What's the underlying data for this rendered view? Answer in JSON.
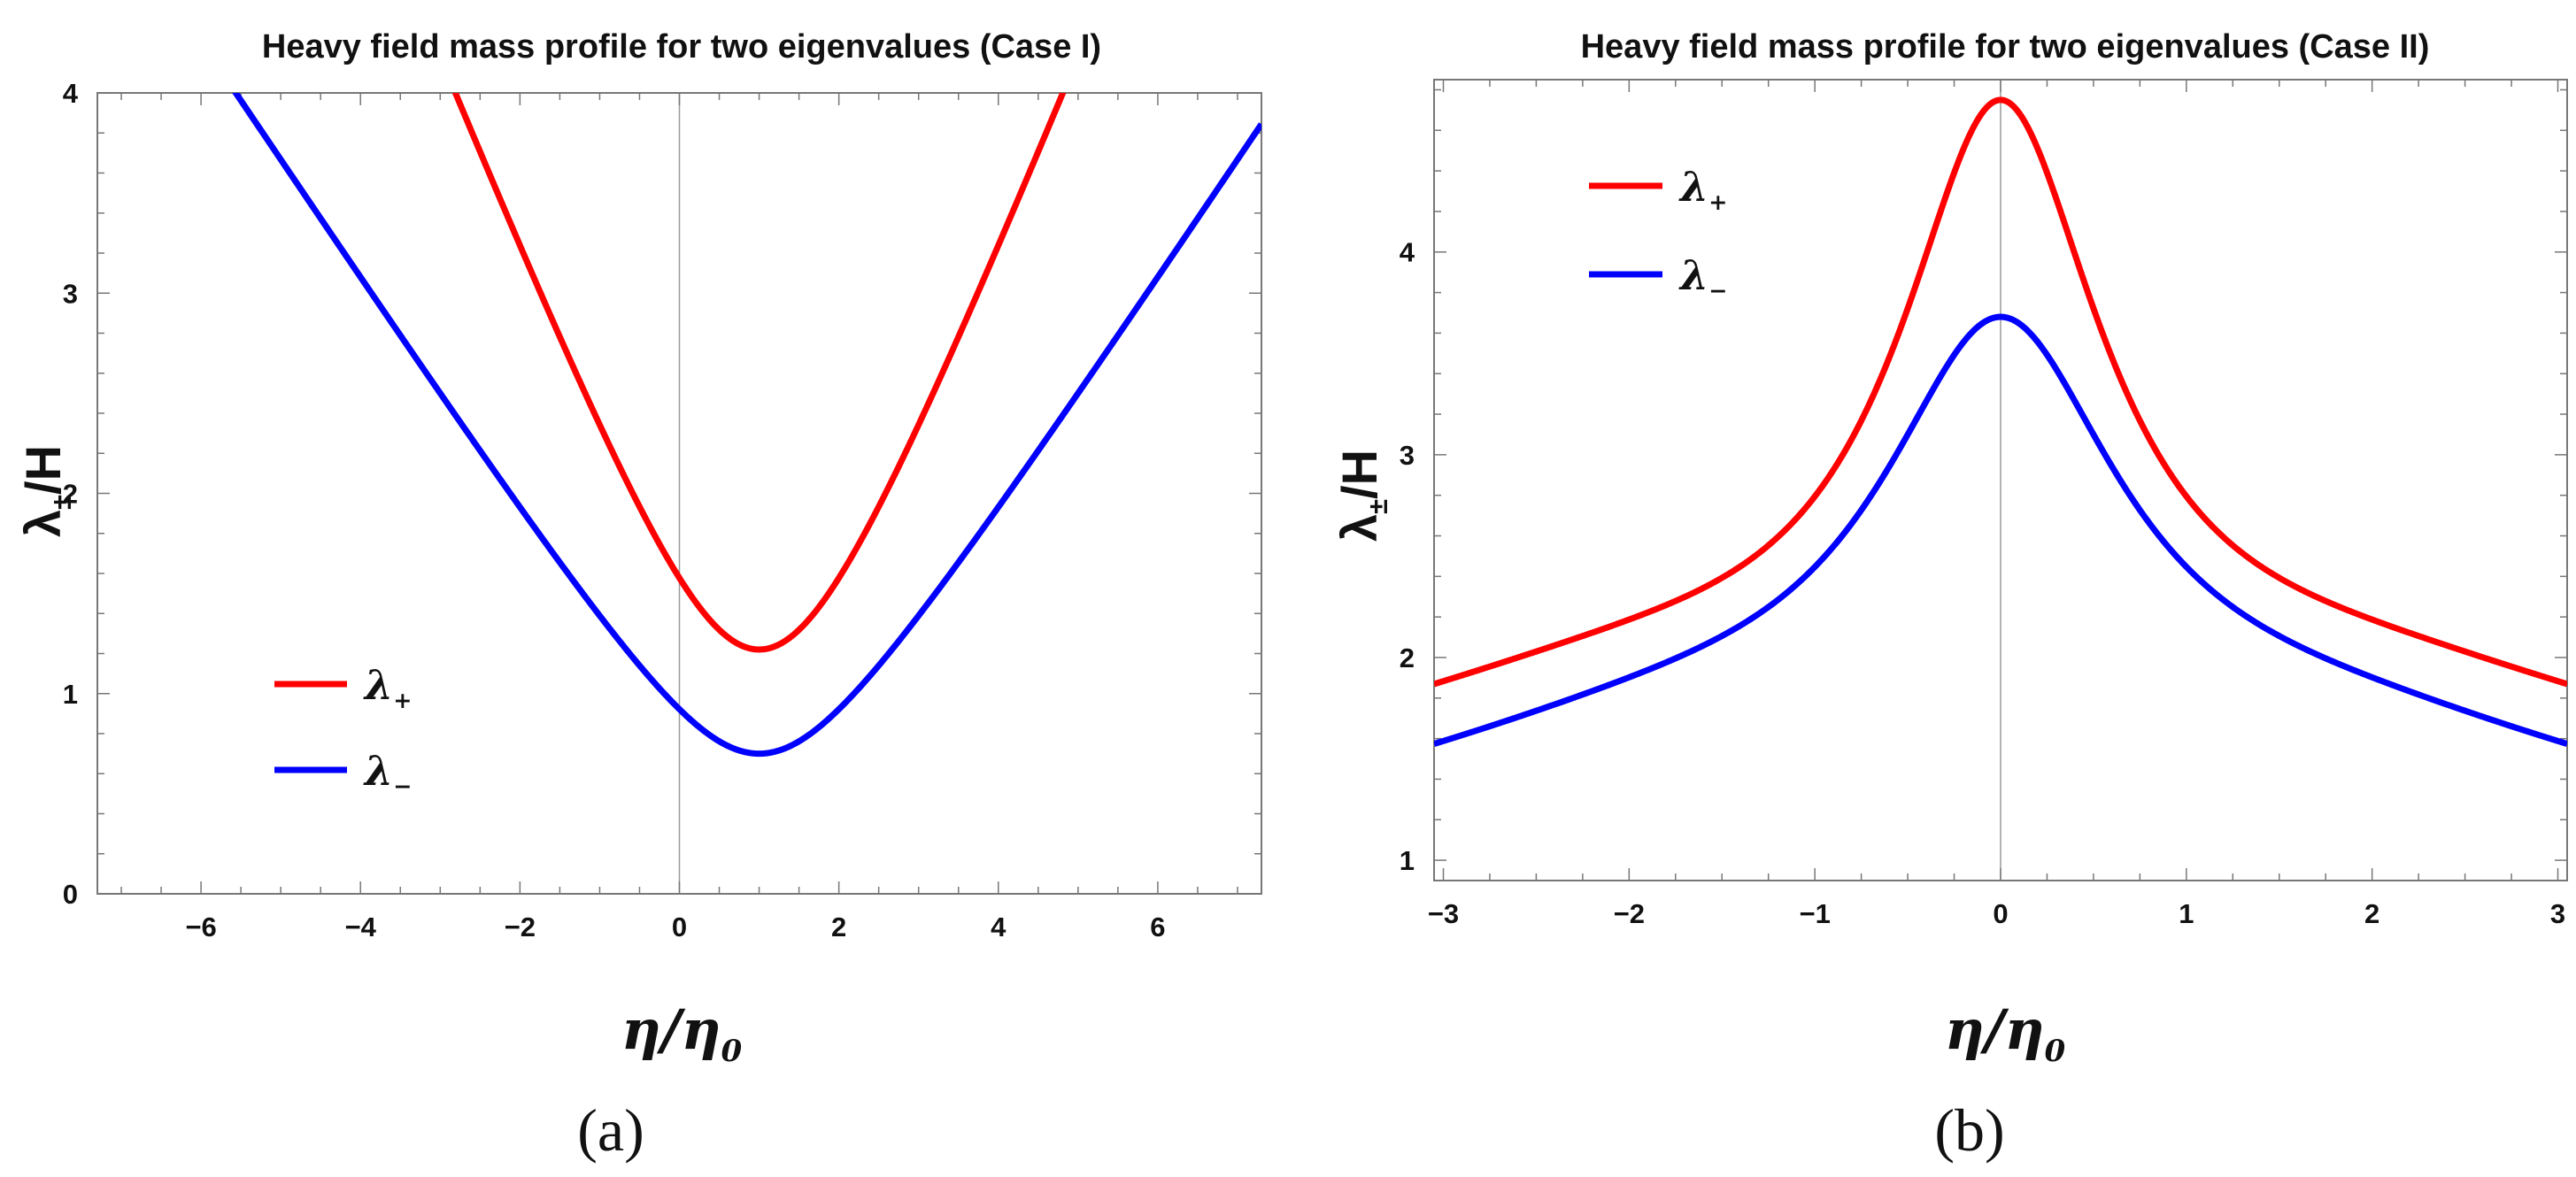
{
  "chart_data": [
    {
      "type": "line",
      "title": "Heavy field mass profile for two eigenvalues (Case I)",
      "xlabel": {
        "main": "η/η",
        "sub": "0"
      },
      "ylabel": {
        "main": "λ",
        "sub": "±",
        "rest": "/H"
      },
      "xlim": [
        -7.3,
        7.3
      ],
      "ylim": [
        0,
        4
      ],
      "xticks": [
        "−6",
        "−4",
        "−2",
        "0",
        "2",
        "4",
        "6"
      ],
      "xtick_values": [
        -6,
        -4,
        -2,
        0,
        2,
        4,
        6
      ],
      "yticks": [
        "0",
        "1",
        "2",
        "3",
        "4"
      ],
      "ytick_values": [
        0,
        1,
        2,
        3,
        4
      ],
      "legend_position": "lower-left",
      "series": [
        {
          "name": "λ+",
          "label_main": "λ",
          "label_sub": "+",
          "color": "#ff0000",
          "kind": "case1",
          "a": 1.22,
          "b": 1.0
        },
        {
          "name": "λ−",
          "label_main": "λ",
          "label_sub": "−",
          "color": "#0000ff",
          "kind": "case1",
          "a": 0.7,
          "b": 0.6
        }
      ],
      "caption": "(a)"
    },
    {
      "type": "line",
      "title": "Heavy field mass profile for two eigenvalues (Case II)",
      "xlabel": {
        "main": "η/η",
        "sub": "0"
      },
      "ylabel": {
        "main": "λ",
        "sub": "±",
        "rest": "/H"
      },
      "xlim": [
        -3.05,
        3.05
      ],
      "ylim": [
        0.9,
        4.85
      ],
      "xticks": [
        "−3",
        "−2",
        "−1",
        "0",
        "1",
        "2",
        "3"
      ],
      "xtick_values": [
        -3,
        -2,
        -1,
        0,
        1,
        2,
        3
      ],
      "yticks": [
        "1",
        "2",
        "3",
        "4"
      ],
      "ytick_values": [
        1,
        2,
        3,
        4
      ],
      "legend_position": "top-left",
      "series": [
        {
          "name": "λ+",
          "label_main": "λ",
          "label_sub": "+",
          "color": "#ff0000",
          "kind": "case2",
          "peak": 4.75,
          "c": 0.2
        },
        {
          "name": "λ−",
          "label_main": "λ",
          "label_sub": "−",
          "color": "#0000ff",
          "kind": "case2",
          "peak": 3.68,
          "c": 0.2
        }
      ],
      "caption": "(b)"
    }
  ]
}
